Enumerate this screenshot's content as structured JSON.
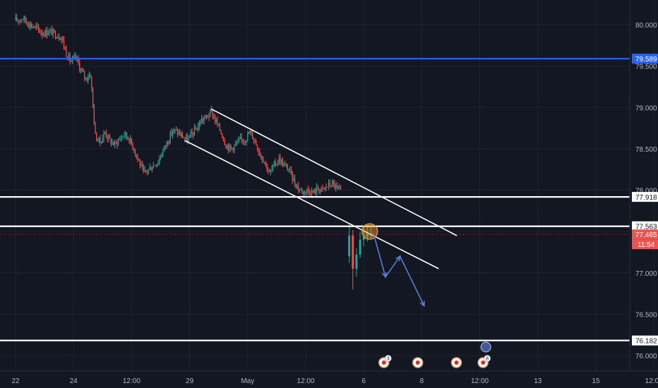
{
  "chart_data": {
    "type": "candlestick",
    "title": "",
    "ylim": [
      75.85,
      80.3
    ],
    "y_ticks": [
      "80.000",
      "79.500",
      "79.000",
      "78.500",
      "78.000",
      "77.500",
      "77.000",
      "76.500",
      "76.000"
    ],
    "y_tick_values": [
      80.0,
      79.5,
      79.0,
      78.5,
      78.0,
      77.5,
      77.0,
      76.5,
      76.0
    ],
    "x_ticks": [
      "22",
      "24",
      "12:00",
      "29",
      "May",
      "12:00",
      "6",
      "8",
      "12:00",
      "13",
      "15",
      "12:00"
    ],
    "x_tick_index": [
      0,
      48,
      96,
      144,
      192,
      240,
      288,
      336,
      384,
      432,
      480,
      528
    ],
    "current_price": "77.465",
    "countdown": "11:54",
    "colors": {
      "background": "#131722",
      "up": "#26a69a",
      "down": "#ef5350",
      "blue_line": "#2962ff",
      "white_line": "#ffffff",
      "projection": "#5b7bd5",
      "highlight": "#f0a030"
    },
    "horizontal_lines": [
      {
        "value": 79.589,
        "label": "79.589",
        "color": "#2962ff"
      },
      {
        "value": 77.918,
        "label": "77.918",
        "color": "#ffffff"
      },
      {
        "value": 77.563,
        "label": "77.563",
        "color": "#ffffff"
      },
      {
        "value": 76.182,
        "label": "76.182",
        "color": "#ffffff"
      }
    ],
    "close_path": [
      [
        0,
        80.05
      ],
      [
        6,
        80.08
      ],
      [
        12,
        80.0
      ],
      [
        18,
        79.95
      ],
      [
        22,
        79.9
      ],
      [
        28,
        79.92
      ],
      [
        34,
        79.88
      ],
      [
        38,
        79.85
      ],
      [
        42,
        79.65
      ],
      [
        46,
        79.55
      ],
      [
        50,
        79.6
      ],
      [
        54,
        79.45
      ],
      [
        58,
        79.35
      ],
      [
        62,
        79.4
      ],
      [
        66,
        78.65
      ],
      [
        70,
        78.58
      ],
      [
        74,
        78.7
      ],
      [
        78,
        78.6
      ],
      [
        82,
        78.55
      ],
      [
        86,
        78.62
      ],
      [
        90,
        78.68
      ],
      [
        94,
        78.62
      ],
      [
        98,
        78.5
      ],
      [
        102,
        78.35
      ],
      [
        106,
        78.2
      ],
      [
        110,
        78.25
      ],
      [
        114,
        78.3
      ],
      [
        118,
        78.35
      ],
      [
        122,
        78.48
      ],
      [
        126,
        78.6
      ],
      [
        130,
        78.72
      ],
      [
        134,
        78.7
      ],
      [
        138,
        78.65
      ],
      [
        142,
        78.6
      ],
      [
        146,
        78.68
      ],
      [
        150,
        78.75
      ],
      [
        154,
        78.85
      ],
      [
        158,
        78.88
      ],
      [
        162,
        78.95
      ],
      [
        165,
        78.85
      ],
      [
        170,
        78.7
      ],
      [
        174,
        78.55
      ],
      [
        178,
        78.5
      ],
      [
        182,
        78.55
      ],
      [
        186,
        78.6
      ],
      [
        190,
        78.62
      ],
      [
        194,
        78.7
      ],
      [
        198,
        78.6
      ],
      [
        202,
        78.45
      ],
      [
        206,
        78.35
      ],
      [
        210,
        78.2
      ],
      [
        214,
        78.3
      ],
      [
        218,
        78.38
      ],
      [
        222,
        78.3
      ],
      [
        226,
        78.25
      ],
      [
        230,
        78.12
      ],
      [
        234,
        78.02
      ],
      [
        238,
        77.98
      ],
      [
        242,
        78.0
      ],
      [
        246,
        77.97
      ],
      [
        250,
        78.02
      ],
      [
        254,
        78.0
      ],
      [
        258,
        78.05
      ],
      [
        262,
        78.08
      ],
      [
        266,
        78.02
      ],
      [
        270,
        77.96
      ]
    ],
    "gap_candles": [
      {
        "i": 276,
        "o": 77.2,
        "h": 77.6,
        "l": 77.12,
        "c": 77.45
      },
      {
        "i": 279,
        "o": 77.45,
        "h": 77.52,
        "l": 76.8,
        "c": 77.05
      },
      {
        "i": 282,
        "o": 77.05,
        "h": 77.3,
        "l": 76.95,
        "c": 77.22
      },
      {
        "i": 285,
        "o": 77.22,
        "h": 77.5,
        "l": 77.18,
        "c": 77.4
      },
      {
        "i": 288,
        "o": 77.4,
        "h": 77.55,
        "l": 77.32,
        "c": 77.44
      },
      {
        "i": 291,
        "o": 77.44,
        "h": 77.56,
        "l": 77.38,
        "c": 77.47
      },
      {
        "i": 294,
        "o": 77.47,
        "h": 77.55,
        "l": 77.42,
        "c": 77.465
      }
    ],
    "channel_upper": [
      [
        162,
        78.98
      ],
      [
        365,
        77.45
      ]
    ],
    "channel_lower": [
      [
        140,
        78.6
      ],
      [
        350,
        77.05
      ]
    ],
    "projection": [
      [
        296,
        77.48
      ],
      [
        306,
        76.95
      ],
      [
        318,
        77.2
      ],
      [
        338,
        76.6
      ]
    ],
    "event_markers": [
      {
        "i": 300,
        "label": "3"
      },
      {
        "i": 328,
        "label": ""
      },
      {
        "i": 360,
        "label": ""
      },
      {
        "i": 382,
        "label": "8"
      }
    ]
  }
}
